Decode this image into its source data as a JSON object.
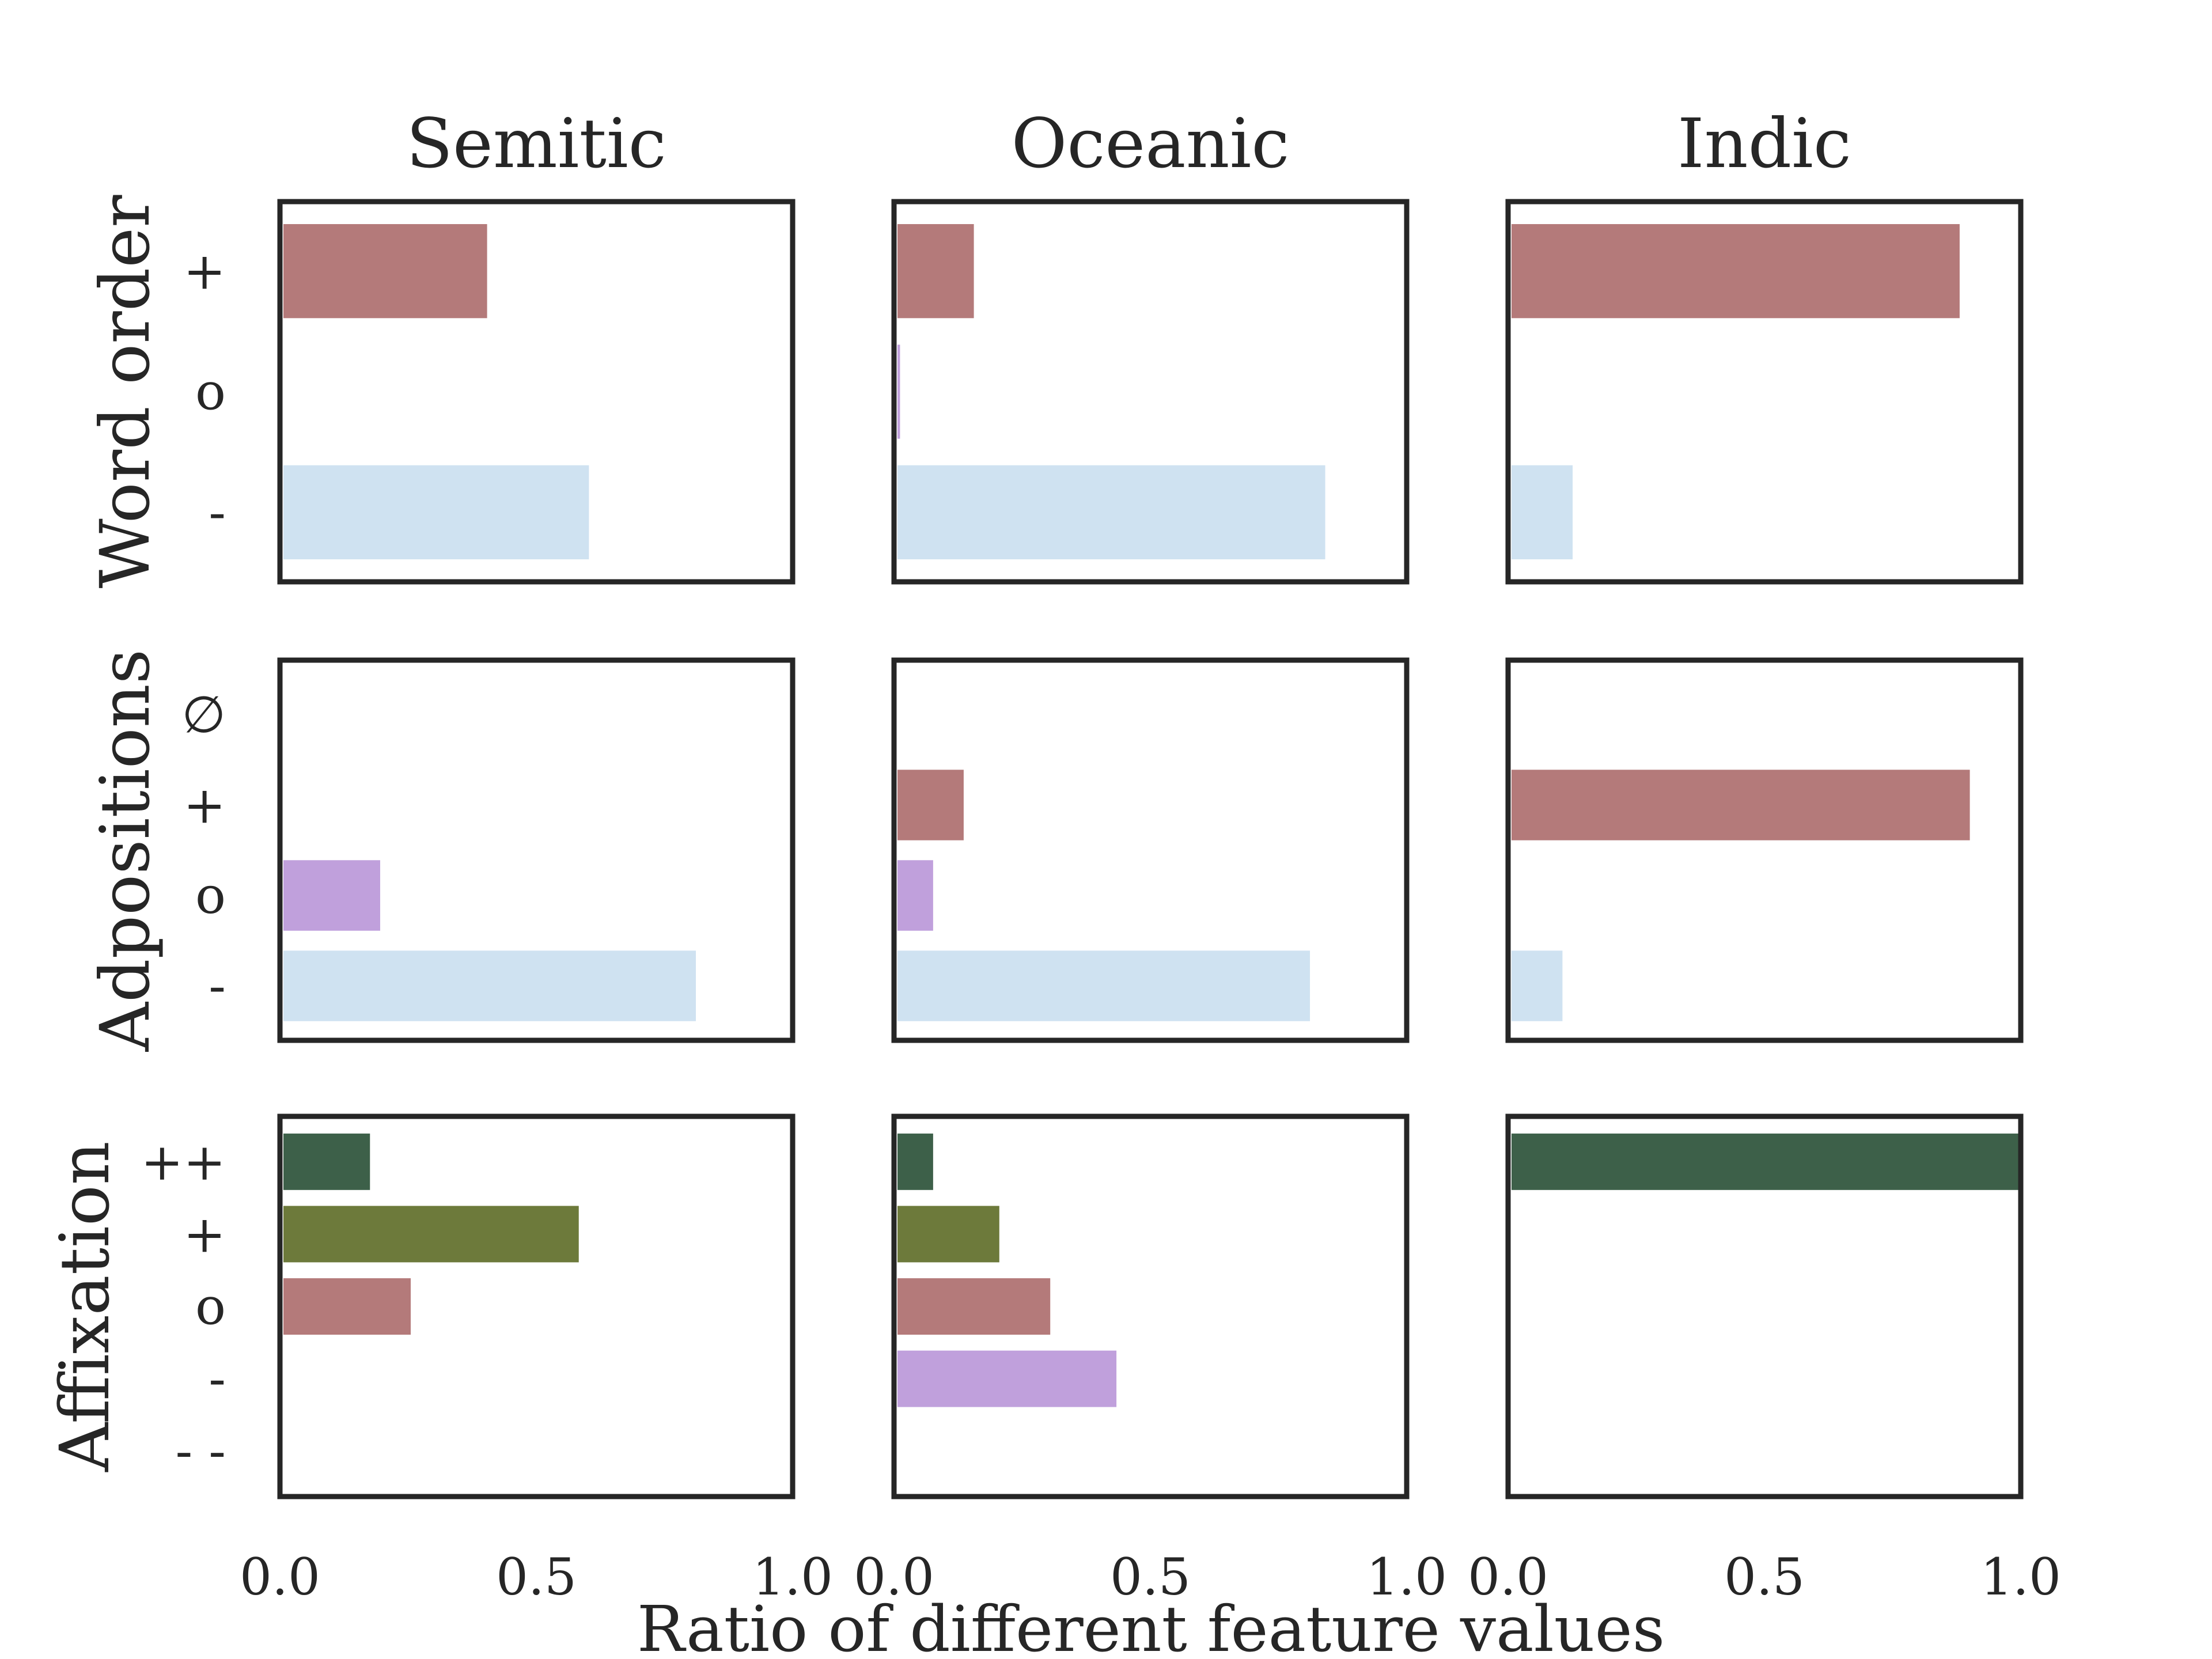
{
  "chart_data": {
    "type": "bar",
    "orientation": "horizontal",
    "xlabel": "Ratio of different feature values",
    "xlim": [
      0,
      1
    ],
    "xticks": [
      "0.0",
      "0.5",
      "1.0"
    ],
    "columns": [
      "Semitic",
      "Oceanic",
      "Indic"
    ],
    "rows": [
      {
        "ylabel": "Word order",
        "categories": [
          "+",
          "o",
          "-"
        ],
        "panels": [
          {
            "column": "Semitic",
            "values": [
              0.4,
              0.0,
              0.6
            ],
            "colors": [
              "#b47a7a",
              "#c0a0dc",
              "#cfe2f1"
            ]
          },
          {
            "column": "Oceanic",
            "values": [
              0.15,
              0.005,
              0.84
            ],
            "colors": [
              "#b47a7a",
              "#c0a0dc",
              "#cfe2f1"
            ]
          },
          {
            "column": "Indic",
            "values": [
              0.88,
              0.0,
              0.12
            ],
            "colors": [
              "#b47a7a",
              "#c0a0dc",
              "#cfe2f1"
            ]
          }
        ]
      },
      {
        "ylabel": "Adpositions",
        "categories": [
          "∅",
          "+",
          "o",
          "-"
        ],
        "panels": [
          {
            "column": "Semitic",
            "values": [
              0.0,
              0.0,
              0.19,
              0.81
            ],
            "colors": [
              "#e8d4a8",
              "#b47a7a",
              "#c0a0dc",
              "#cfe2f1"
            ]
          },
          {
            "column": "Oceanic",
            "values": [
              0.0,
              0.13,
              0.07,
              0.81
            ],
            "colors": [
              "#e8d4a8",
              "#b47a7a",
              "#c0a0dc",
              "#cfe2f1"
            ]
          },
          {
            "column": "Indic",
            "values": [
              0.0,
              0.9,
              0.0,
              0.1
            ],
            "colors": [
              "#e8d4a8",
              "#b47a7a",
              "#c0a0dc",
              "#cfe2f1"
            ]
          }
        ]
      },
      {
        "ylabel": "Affixation",
        "categories": [
          "++",
          "+",
          "o",
          "-",
          "- -"
        ],
        "panels": [
          {
            "column": "Semitic",
            "values": [
              0.17,
              0.58,
              0.25,
              0.0,
              0.0
            ],
            "colors": [
              "#3d6049",
              "#6d7a3b",
              "#b47a7a",
              "#c0a0dc",
              "#cfe2f1"
            ]
          },
          {
            "column": "Oceanic",
            "values": [
              0.07,
              0.2,
              0.3,
              0.43,
              0.0
            ],
            "colors": [
              "#3d6049",
              "#6d7a3b",
              "#b47a7a",
              "#c0a0dc",
              "#cfe2f1"
            ]
          },
          {
            "column": "Indic",
            "values": [
              1.0,
              0.0,
              0.0,
              0.0,
              0.0
            ],
            "colors": [
              "#3d6049",
              "#6d7a3b",
              "#b47a7a",
              "#c0a0dc",
              "#cfe2f1"
            ]
          }
        ]
      }
    ]
  }
}
